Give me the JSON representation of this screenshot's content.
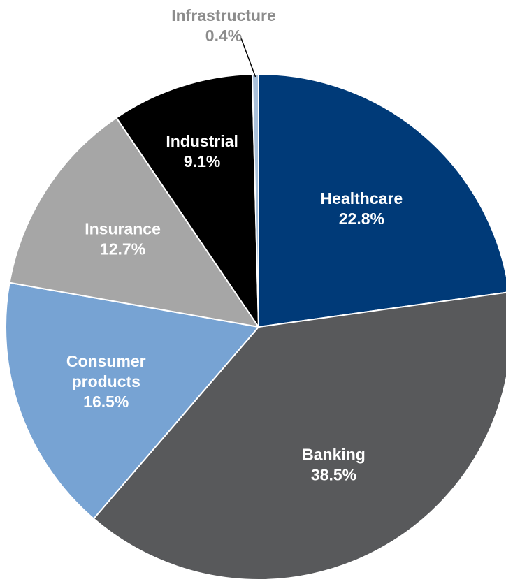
{
  "chart_data": {
    "type": "pie",
    "title": "",
    "start_angle_deg": 0,
    "direction": "clockwise",
    "slices": [
      {
        "name": "Healthcare",
        "value": 22.8,
        "label_lines": [
          "Healthcare",
          "22.8%"
        ],
        "color": "#003a78",
        "label_color": "#ffffff"
      },
      {
        "name": "Banking",
        "value": 38.5,
        "label_lines": [
          "Banking",
          "38.5%"
        ],
        "color": "#58595b",
        "label_color": "#ffffff"
      },
      {
        "name": "Consumer products",
        "value": 16.5,
        "label_lines": [
          "Consumer",
          "products",
          "16.5%"
        ],
        "color": "#77a3d3",
        "label_color": "#ffffff"
      },
      {
        "name": "Insurance",
        "value": 12.7,
        "label_lines": [
          "Insurance",
          "12.7%"
        ],
        "color": "#a6a6a6",
        "label_color": "#ffffff"
      },
      {
        "name": "Industrial",
        "value": 9.1,
        "label_lines": [
          "Industrial",
          "9.1%"
        ],
        "color": "#000000",
        "label_color": "#ffffff"
      },
      {
        "name": "Infrastructure",
        "value": 0.4,
        "label_lines": [
          "Infrastructure",
          "0.4%"
        ],
        "color": "#a9c0da",
        "label_color": "#8c8c8c",
        "label_outside": true
      }
    ],
    "legend": "none",
    "stroke_color": "#ffffff"
  }
}
